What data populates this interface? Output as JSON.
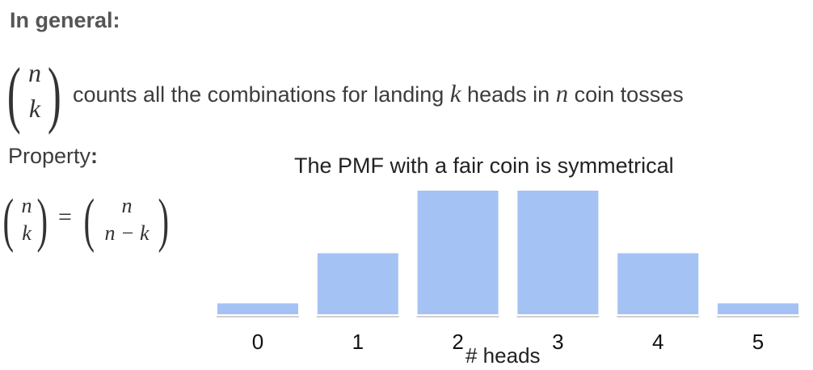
{
  "heading": "In general:",
  "binom_main": {
    "top": "n",
    "bottom": "k"
  },
  "description": {
    "part1": "counts all the combinations for landing ",
    "var_k": "k",
    "part2": " heads in ",
    "var_n": "n",
    "part3": " coin tosses"
  },
  "property_label": "Property",
  "property_colon": ":",
  "identity": {
    "left": {
      "top": "n",
      "bottom": "k"
    },
    "equals": "=",
    "right": {
      "top": "n",
      "bottom": "n − k"
    }
  },
  "chart_data": {
    "type": "bar",
    "title": "The PMF with a fair coin is symmetrical",
    "xlabel": "# heads",
    "ylabel": "",
    "categories": [
      "0",
      "1",
      "2",
      "3",
      "4",
      "5"
    ],
    "values": [
      1,
      5,
      10,
      10,
      5,
      1
    ],
    "ylim": [
      0,
      10
    ],
    "bar_color": "#a4c2f4",
    "grid": false,
    "axes_visible": false
  }
}
